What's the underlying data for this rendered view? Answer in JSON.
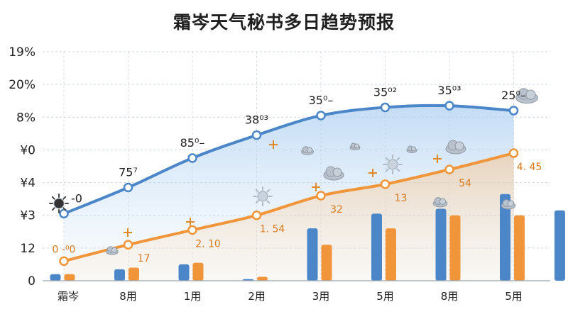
{
  "title": "霜岑天气秘书多日趋势预报",
  "chart_data": {
    "type": "line",
    "title": "霜岑天气秘书多日趋势预报",
    "xlabel": "",
    "ylabel": "",
    "y_tick_labels": [
      "0",
      "12",
      "¥3",
      "¥4",
      "¥0",
      "8%",
      "20%",
      "19%"
    ],
    "categories": [
      "霜岑",
      "8用",
      "1用",
      "2用",
      "3用",
      "5用",
      "8用",
      "5用"
    ],
    "x": [
      0,
      1,
      2,
      3,
      4,
      5,
      6,
      7,
      7.85
    ],
    "series": [
      {
        "color": "#4a86c8",
        "values": [
          2.05,
          2.85,
          3.75,
          4.45,
          5.05,
          5.3,
          5.35,
          5.2
        ],
        "point_labels": [
          "-0",
          "75⁷",
          "85⁰–",
          "38⁰³",
          "35⁰–",
          "35⁰²",
          "35⁰³",
          "25⁰–"
        ]
      },
      {
        "color": "#f0953a",
        "values": [
          0.6,
          1.1,
          1.55,
          2.0,
          2.6,
          2.95,
          3.4,
          3.9
        ],
        "point_labels": [
          "0 -⁰0",
          "17",
          "2. 10",
          "1. 54",
          "32",
          "13",
          "54",
          "4. 45"
        ]
      }
    ],
    "bars": {
      "blue": [
        0.2,
        0.35,
        0.5,
        0.05,
        1.6,
        2.05,
        2.2,
        2.65,
        2.15
      ],
      "orange": [
        0.2,
        0.4,
        0.55,
        0.12,
        1.1,
        1.6,
        2.0,
        2.0
      ]
    },
    "icons": [
      "sun-icon",
      "cloud-icon",
      "sun-icon",
      "cloud-icon",
      "sun-icon",
      "cloud-icon",
      "sun-icon",
      "cloud-icon"
    ],
    "ylim": [
      0,
      7
    ],
    "grid": true,
    "colors": {
      "blue": "#4a86c8",
      "orange": "#f0953a"
    }
  }
}
